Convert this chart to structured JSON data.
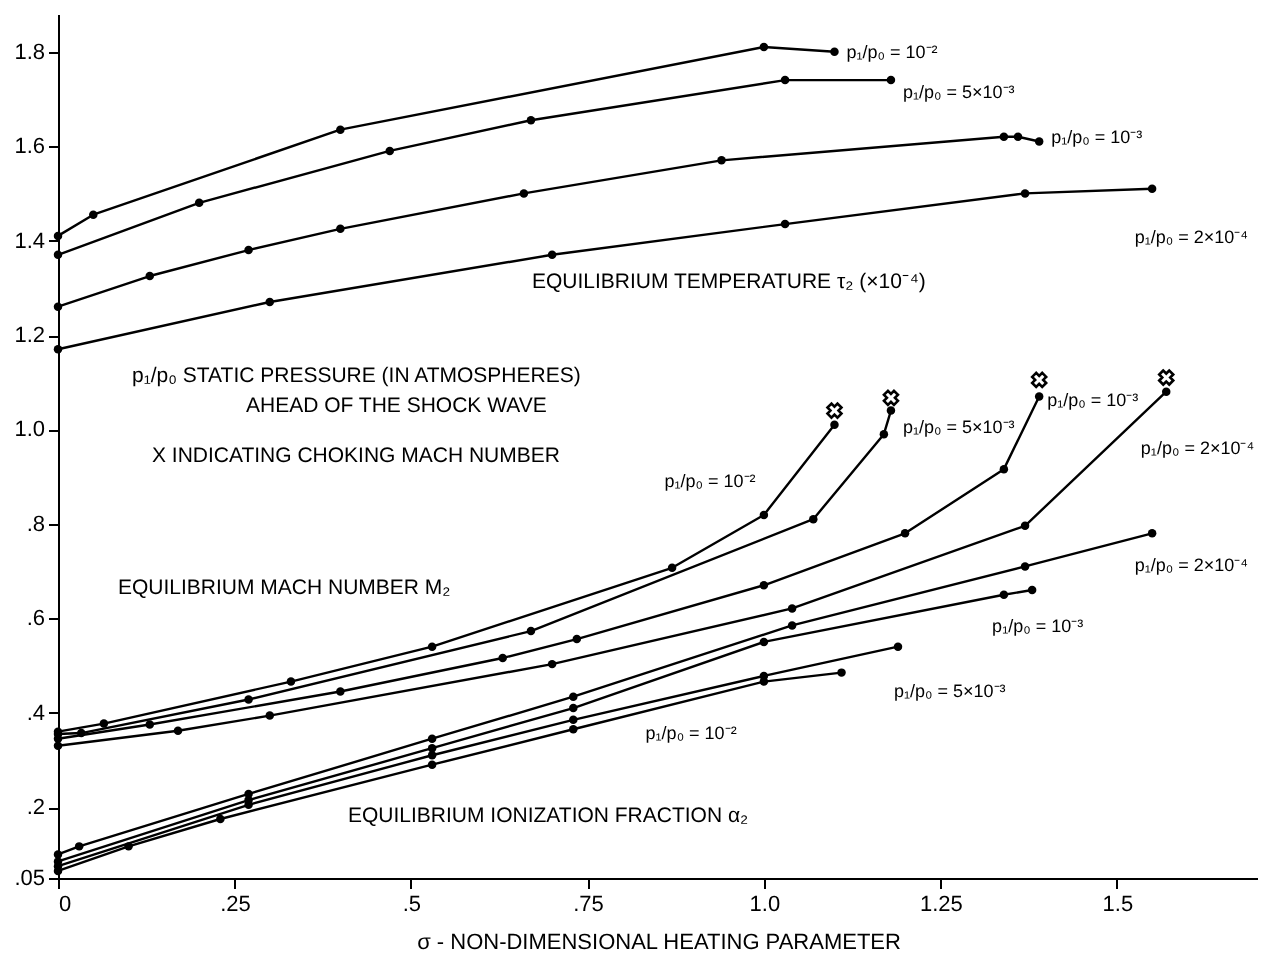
{
  "chart_data": {
    "type": "line",
    "xlabel": "σ - NON-DIMENSIONAL HEATING PARAMETER",
    "xlim": [
      0,
      1.7
    ],
    "xticks": [
      0,
      {
        "value": 0.25,
        "label": ".25"
      },
      {
        "value": 0.5,
        "label": ".5"
      },
      {
        "value": 0.75,
        "label": ".75"
      },
      {
        "value": 1,
        "label": "1.0"
      },
      {
        "value": 1.25,
        "label": "1.25"
      },
      {
        "value": 1.5,
        "label": "1.5"
      }
    ],
    "ylim": [
      0.05,
      1.88
    ],
    "yticks": [
      {
        "value": 0.05,
        "label": ".05"
      },
      {
        "value": 0.2,
        "label": ".2"
      },
      {
        "value": 0.4,
        "label": ".4"
      },
      {
        "value": 0.6,
        "label": ".6"
      },
      {
        "value": 0.8,
        "label": ".8"
      },
      {
        "value": 1,
        "label": "1.0"
      },
      {
        "value": 1.2,
        "label": "1.2"
      },
      {
        "value": 1.4,
        "label": "1.4"
      },
      {
        "value": 1.6,
        "label": "1.6"
      },
      {
        "value": 1.8,
        "label": "1.8"
      }
    ],
    "grid": false,
    "marker": "circle",
    "line_style": "solid",
    "annotations": [
      "EQUILIBRIUM TEMPERATURE τ₂ (×10⁻⁴)",
      "p₁/p₀  STATIC PRESSURE (IN ATMOSPHERES)",
      "AHEAD OF THE SHOCK WAVE",
      "X  INDICATING CHOKING MACH NUMBER",
      "EQUILIBRIUM MACH NUMBER M₂",
      "EQUILIBRIUM IONIZATION FRACTION α₂"
    ],
    "series": [
      {
        "name": "p₁/p₀ = 10⁻²",
        "color": "#000000",
        "x": [
          0,
          0.05,
          0.4,
          1.0,
          1.1
        ],
        "values": [
          1.41,
          1.455,
          1.635,
          1.81,
          1.8
        ]
      },
      {
        "name": "p₁/p₀ = 5×10⁻³",
        "color": "#000000",
        "x": [
          0,
          0.2,
          0.47,
          0.67,
          1.03,
          1.18
        ],
        "values": [
          1.37,
          1.48,
          1.59,
          1.655,
          1.74,
          1.74
        ]
      },
      {
        "name": "p₁/p₀ = 10⁻³",
        "color": "#000000",
        "x": [
          0,
          0.13,
          0.27,
          0.4,
          0.66,
          0.94,
          1.34,
          1.36,
          1.39
        ],
        "values": [
          1.26,
          1.325,
          1.38,
          1.425,
          1.5,
          1.57,
          1.62,
          1.62,
          1.61
        ]
      },
      {
        "name": "p₁/p₀ = 2×10⁻⁴",
        "color": "#000000",
        "x": [
          0,
          0.3,
          0.7,
          1.03,
          1.37,
          1.55
        ],
        "values": [
          1.17,
          1.27,
          1.37,
          1.435,
          1.5,
          1.51
        ]
      },
      {
        "name": "p₁/p₀ = 10⁻²",
        "color": "#000000",
        "x": [
          0,
          0.065,
          0.33,
          0.53,
          0.87,
          1.0,
          1.1
        ],
        "values": [
          0.36,
          0.377,
          0.466,
          0.54,
          0.707,
          0.819,
          1.01
        ]
      },
      {
        "name": "p₁/p₀ = 5×10⁻³",
        "color": "#000000",
        "x": [
          0,
          0.033,
          0.27,
          0.67,
          1.07,
          1.17,
          1.18
        ],
        "values": [
          0.355,
          0.357,
          0.428,
          0.573,
          0.81,
          0.99,
          1.04
        ]
      },
      {
        "name": "p₁/p₀ = 10⁻³",
        "color": "#000000",
        "x": [
          0,
          0.13,
          0.4,
          0.63,
          0.735,
          1.0,
          1.2,
          1.34,
          1.39
        ],
        "values": [
          0.345,
          0.375,
          0.445,
          0.516,
          0.556,
          0.67,
          0.78,
          0.916,
          1.07
        ]
      },
      {
        "name": "p₁/p₀ = 2×10⁻⁴",
        "color": "#000000",
        "x": [
          0,
          0.17,
          0.3,
          0.7,
          1.04,
          1.37,
          1.57
        ],
        "values": [
          0.33,
          0.362,
          0.394,
          0.503,
          0.621,
          0.796,
          1.08
        ]
      },
      {
        "name": "p₁/p₀ = 2×10⁻⁴",
        "color": "#000000",
        "x": [
          0,
          0.03,
          0.27,
          0.53,
          0.73,
          1.04,
          1.37,
          1.55
        ],
        "values": [
          0.1,
          0.117,
          0.228,
          0.345,
          0.434,
          0.585,
          0.71,
          0.78
        ]
      },
      {
        "name": "p₁/p₀ = 10⁻³",
        "color": "#000000",
        "x": [
          0,
          0.27,
          0.53,
          0.73,
          1.0,
          1.34,
          1.38
        ],
        "values": [
          0.085,
          0.215,
          0.325,
          0.41,
          0.55,
          0.65,
          0.66
        ]
      },
      {
        "name": "p₁/p₀ = 5×10⁻³",
        "color": "#000000",
        "x": [
          0,
          0.27,
          0.53,
          0.73,
          1.0,
          1.19
        ],
        "values": [
          0.075,
          0.205,
          0.31,
          0.385,
          0.478,
          0.54
        ]
      },
      {
        "name": "p₁/p₀ = 10⁻²",
        "color": "#000000",
        "x": [
          0,
          0.1,
          0.23,
          0.53,
          0.73,
          1.0,
          1.11
        ],
        "values": [
          0.065,
          0.117,
          0.175,
          0.29,
          0.365,
          0.466,
          0.485
        ]
      },
      {
        "type": "scatter",
        "marker": "cross",
        "color": "#000000",
        "x": [
          1.1,
          1.18,
          1.39,
          1.57
        ],
        "values": [
          1.04,
          1.067,
          1.105,
          1.11
        ]
      }
    ]
  }
}
